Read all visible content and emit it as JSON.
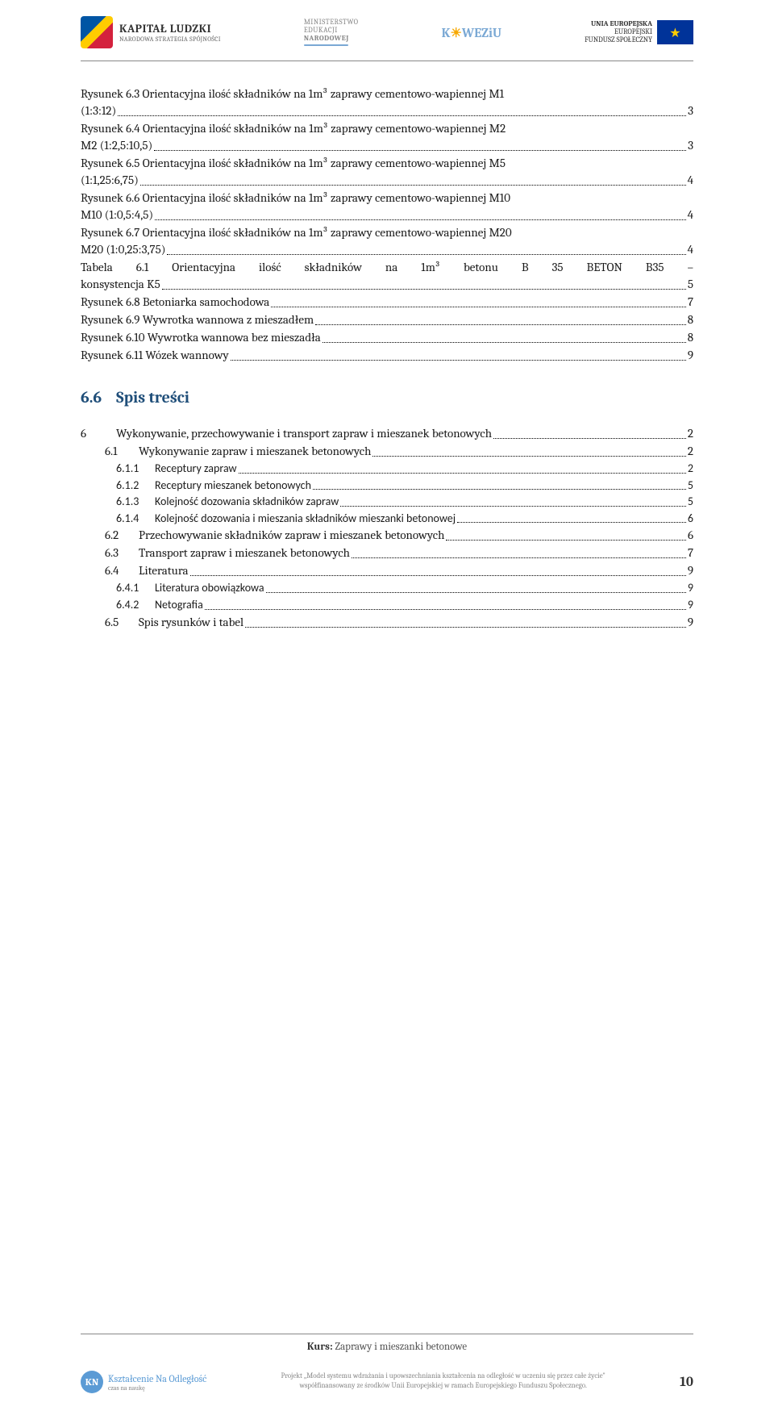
{
  "header": {
    "kapital": {
      "title": "KAPITAŁ LUDZKI",
      "subtitle": "NARODOWA STRATEGIA SPÓJNOŚCI"
    },
    "ministry": {
      "l1": "MINISTERSTWO",
      "l2": "EDUKACJI",
      "l3": "NARODOWEJ"
    },
    "koweziu": "K☀WEZiU",
    "eu": {
      "l1": "UNIA EUROPEJSKA",
      "l2": "EUROPEJSKI",
      "l3": "FUNDUSZ SPOŁECZNY",
      "stars": "★"
    }
  },
  "figures": [
    {
      "label_l1": "Rysunek 6.3 Orientacyjna ilość składników na 1m³ zaprawy cementowo-wapiennej M1",
      "label_l2": "(1:3:12)",
      "page": "3"
    },
    {
      "label_l1": "Rysunek 6.4 Orientacyjna ilość składników na 1m³ zaprawy cementowo-wapiennej M2",
      "label_l2": "M2 (1:2,5:10,5)",
      "page": "3"
    },
    {
      "label_l1": "Rysunek 6.5 Orientacyjna ilość składników na 1m³ zaprawy cementowo-wapiennej M5",
      "label_l2": "(1:1,25:6,75)",
      "page": "4"
    },
    {
      "label_l1": "Rysunek 6.6 Orientacyjna ilość składników na 1m³ zaprawy cementowo-wapiennej M10",
      "label_l2": "M10 (1:0,5:4,5)",
      "page": "4"
    },
    {
      "label_l1": "Rysunek 6.7 Orientacyjna ilość składników na 1m³ zaprawy cementowo-wapiennej M20",
      "label_l2": "M20 (1:0,25:3,75)",
      "page": "4"
    },
    {
      "label_l1": "Tabela 6.1 Orientacyjna ilość składników na 1m³ betonu B 35 BETON B35 –",
      "label_l2": "konsystencja K5",
      "page": "5",
      "justify": true
    }
  ],
  "figures_single": [
    {
      "label": "Rysunek 6.8 Betoniarka samochodowa",
      "page": "7"
    },
    {
      "label": "Rysunek 6.9 Wywrotka wannowa z mieszadłem",
      "page": "8"
    },
    {
      "label": "Rysunek 6.10 Wywrotka wannowa bez mieszadła",
      "page": "8"
    },
    {
      "label": "Rysunek 6.11 Wózek wannowy",
      "page": "9"
    }
  ],
  "section": {
    "num": "6.6",
    "title": "Spis treści"
  },
  "toc": [
    {
      "level": 1,
      "num": "6",
      "title": "Wykonywanie, przechowywanie i transport zapraw i mieszanek betonowych",
      "page": "2"
    },
    {
      "level": 2,
      "num": "6.1",
      "title": "Wykonywanie zapraw i mieszanek betonowych",
      "page": "2"
    },
    {
      "level": 3,
      "num": "6.1.1",
      "title": "Receptury zapraw",
      "page": "2"
    },
    {
      "level": 3,
      "num": "6.1.2",
      "title": "Receptury mieszanek betonowych",
      "page": "5"
    },
    {
      "level": 3,
      "num": "6.1.3",
      "title": "Kolejność dozowania składników zapraw",
      "page": "5"
    },
    {
      "level": 3,
      "num": "6.1.4",
      "title": "Kolejność dozowania i mieszania składników mieszanki betonowej",
      "page": "6"
    },
    {
      "level": 2,
      "num": "6.2",
      "title": "Przechowywanie składników zapraw i mieszanek betonowych",
      "page": "6"
    },
    {
      "level": 2,
      "num": "6.3",
      "title": "Transport zapraw i mieszanek betonowych",
      "page": "7"
    },
    {
      "level": 2,
      "num": "6.4",
      "title": "Literatura",
      "page": "9"
    },
    {
      "level": 3,
      "num": "6.4.1",
      "title": "Literatura obowiązkowa",
      "page": "9"
    },
    {
      "level": 3,
      "num": "6.4.2",
      "title": "Netografia",
      "page": "9"
    },
    {
      "level": 2,
      "num": "6.5",
      "title": "Spis rysunków i tabel",
      "page": "9"
    }
  ],
  "footer": {
    "kurs_label": "Kurs:",
    "kurs_title": "Zaprawy i mieszanki betonowe",
    "kno": {
      "l1": "Kształcenie Na Odległość",
      "l2": "czas na naukę"
    },
    "project_l1": "Projekt „Model systemu wdrażania i upowszechniania kształcenia na odległość w uczeniu się przez całe życie\"",
    "project_l2": "współfinansowany ze środków Unii Europejskiej w ramach Europejskiego Funduszu Społecznego.",
    "page": "10"
  }
}
